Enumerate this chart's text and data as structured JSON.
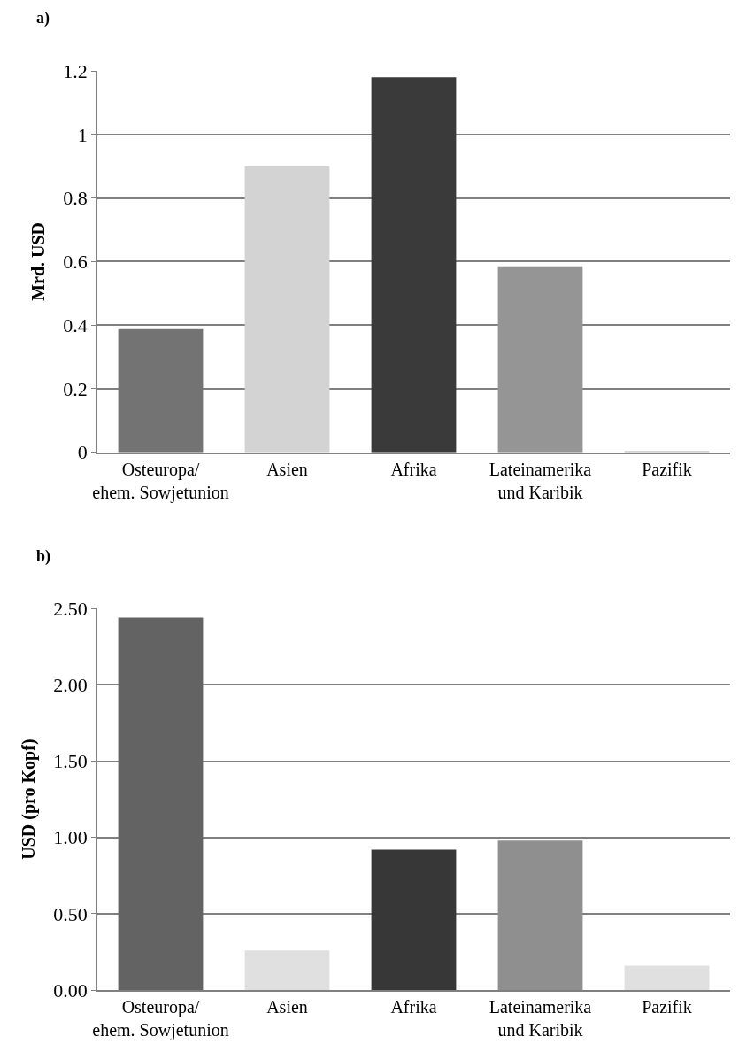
{
  "chart_data": [
    {
      "type": "bar",
      "title": "a)",
      "ylabel": "Mrd. USD",
      "categories": [
        "Osteuropa/\nehem. Sowjetunion",
        "Asien",
        "Afrika",
        "Lateinamerika\nund Karibik",
        "Pazifik"
      ],
      "values": [
        0.39,
        0.9,
        1.18,
        0.585,
        0.005
      ],
      "colors": [
        "#737373",
        "#d3d3d3",
        "#3a3a3a",
        "#959595",
        "#d3d3d3"
      ],
      "ylim": [
        0,
        1.2
      ],
      "yticks": [
        0,
        0.2,
        0.4,
        0.6,
        0.8,
        1,
        1.2
      ],
      "grid": "y"
    },
    {
      "type": "bar",
      "title": "b)",
      "ylabel": "USD (pro Kopf)",
      "categories": [
        "Osteuropa/\nehem. Sowjetunion",
        "Asien",
        "Afrika",
        "Lateinamerika\nund Karibik",
        "Pazifik"
      ],
      "values": [
        2.44,
        0.26,
        0.92,
        0.98,
        0.16
      ],
      "colors": [
        "#636363",
        "#e0e0e0",
        "#373737",
        "#8f8f8f",
        "#e0e0e0"
      ],
      "ylim": [
        0,
        2.5
      ],
      "yticks": [
        {
          "value": 0,
          "label": "0.00"
        },
        {
          "value": 0.5,
          "label": "0.50"
        },
        {
          "value": 1,
          "label": "1.00"
        },
        {
          "value": 1.5,
          "label": "1.50"
        },
        {
          "value": 2,
          "label": "2.00"
        },
        {
          "value": 2.5,
          "label": "2.50"
        }
      ],
      "grid": "y"
    }
  ]
}
